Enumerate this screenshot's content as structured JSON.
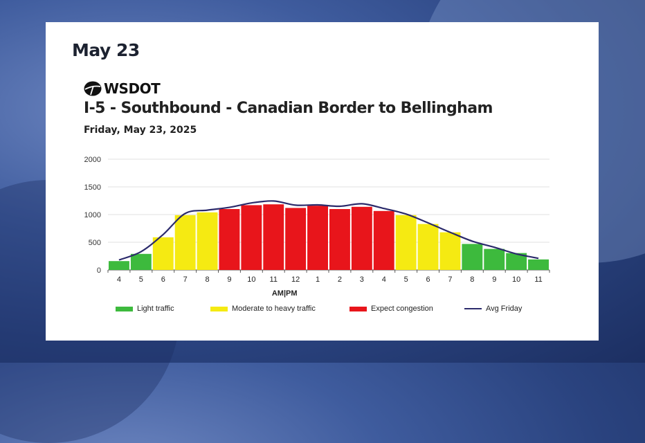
{
  "heading": "May 23",
  "logo_text": "WSDOT",
  "colors": {
    "light": "#3dba3d",
    "moderate": "#f5ea12",
    "congestion": "#e8151b",
    "avg_line": "#2b2a6b"
  },
  "chart_data": {
    "type": "bar",
    "title": "I-5 - Southbound - Canadian Border to Bellingham",
    "subtitle": "Friday, May 23, 2025",
    "categories": [
      "4",
      "5",
      "6",
      "7",
      "8",
      "9",
      "10",
      "11",
      "12",
      "1",
      "2",
      "3",
      "4",
      "5",
      "6",
      "7",
      "8",
      "9",
      "10",
      "11"
    ],
    "values": [
      160,
      290,
      590,
      990,
      1040,
      1100,
      1170,
      1185,
      1120,
      1160,
      1100,
      1140,
      1065,
      990,
      830,
      680,
      470,
      380,
      305,
      190
    ],
    "levels": [
      "light",
      "light",
      "moderate",
      "moderate",
      "moderate",
      "congestion",
      "congestion",
      "congestion",
      "congestion",
      "congestion",
      "congestion",
      "congestion",
      "congestion",
      "moderate",
      "moderate",
      "moderate",
      "light",
      "light",
      "light",
      "light"
    ],
    "series": [
      {
        "name": "Avg Friday",
        "values": [
          180,
          330,
          640,
          1020,
          1080,
          1130,
          1210,
          1245,
          1170,
          1175,
          1150,
          1195,
          1110,
          1010,
          850,
          680,
          520,
          410,
          290,
          210
        ]
      }
    ],
    "xlabel": "AM|PM",
    "ylabel": "",
    "ylim": [
      0,
      2000
    ],
    "yticks": [
      "0",
      "500",
      "1000",
      "1500",
      "2000"
    ],
    "grid": true,
    "legend": [
      {
        "label": "Light traffic",
        "key": "light"
      },
      {
        "label": "Moderate to heavy traffic",
        "key": "moderate"
      },
      {
        "label": "Expect congestion",
        "key": "congestion"
      },
      {
        "label": "Avg Friday",
        "key": "avg_line"
      }
    ]
  }
}
